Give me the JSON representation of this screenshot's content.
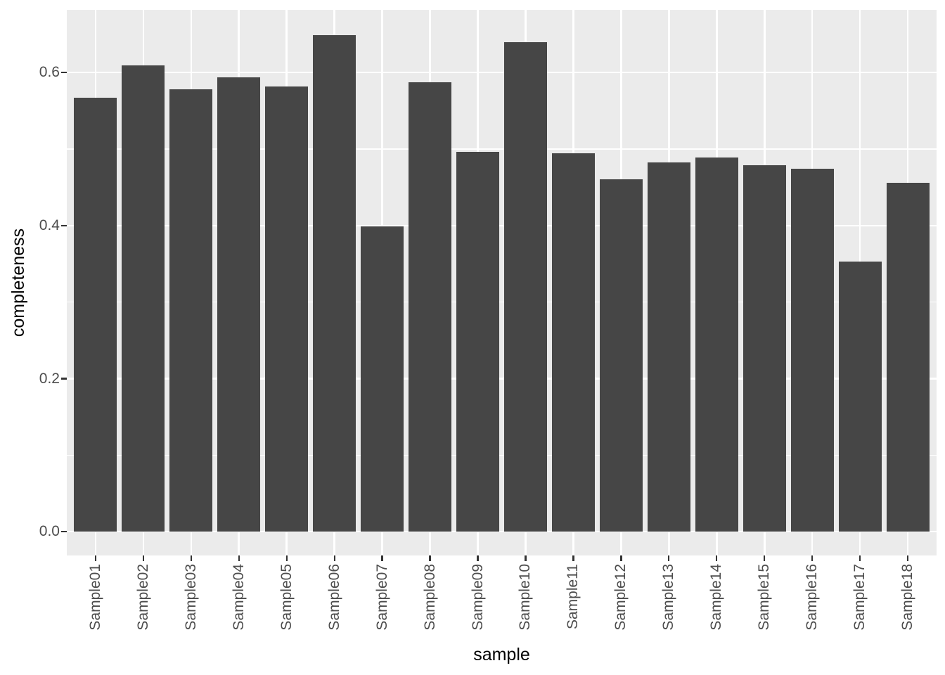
{
  "chart_data": {
    "type": "bar",
    "title": "",
    "xlabel": "sample",
    "ylabel": "completeness",
    "categories": [
      "Sample01",
      "Sample02",
      "Sample03",
      "Sample04",
      "Sample05",
      "Sample06",
      "Sample07",
      "Sample08",
      "Sample09",
      "Sample10",
      "Sample11",
      "Sample12",
      "Sample13",
      "Sample14",
      "Sample15",
      "Sample16",
      "Sample17",
      "Sample18"
    ],
    "values": [
      0.567,
      0.609,
      0.578,
      0.594,
      0.582,
      0.649,
      0.399,
      0.587,
      0.496,
      0.64,
      0.495,
      0.461,
      0.483,
      0.489,
      0.479,
      0.474,
      0.353,
      0.456
    ],
    "y_ticks": {
      "major": [
        0.0,
        0.2,
        0.4,
        0.6
      ],
      "minor": [
        0.1,
        0.3,
        0.5
      ],
      "labels": [
        "0.0",
        "0.2",
        "0.4",
        "0.6"
      ]
    },
    "ylim": [
      -0.031,
      0.682
    ],
    "grid": true,
    "legend": "none",
    "bar_width_fraction": 0.9,
    "colors": {
      "bar_fill": "#464646",
      "panel_bg": "#EBEBEB",
      "gridline": "#FFFFFF",
      "tick_mark": "#333333",
      "tick_label": "#4D4D4D",
      "axis_title": "#000000",
      "page_bg": "#FFFFFF"
    }
  }
}
